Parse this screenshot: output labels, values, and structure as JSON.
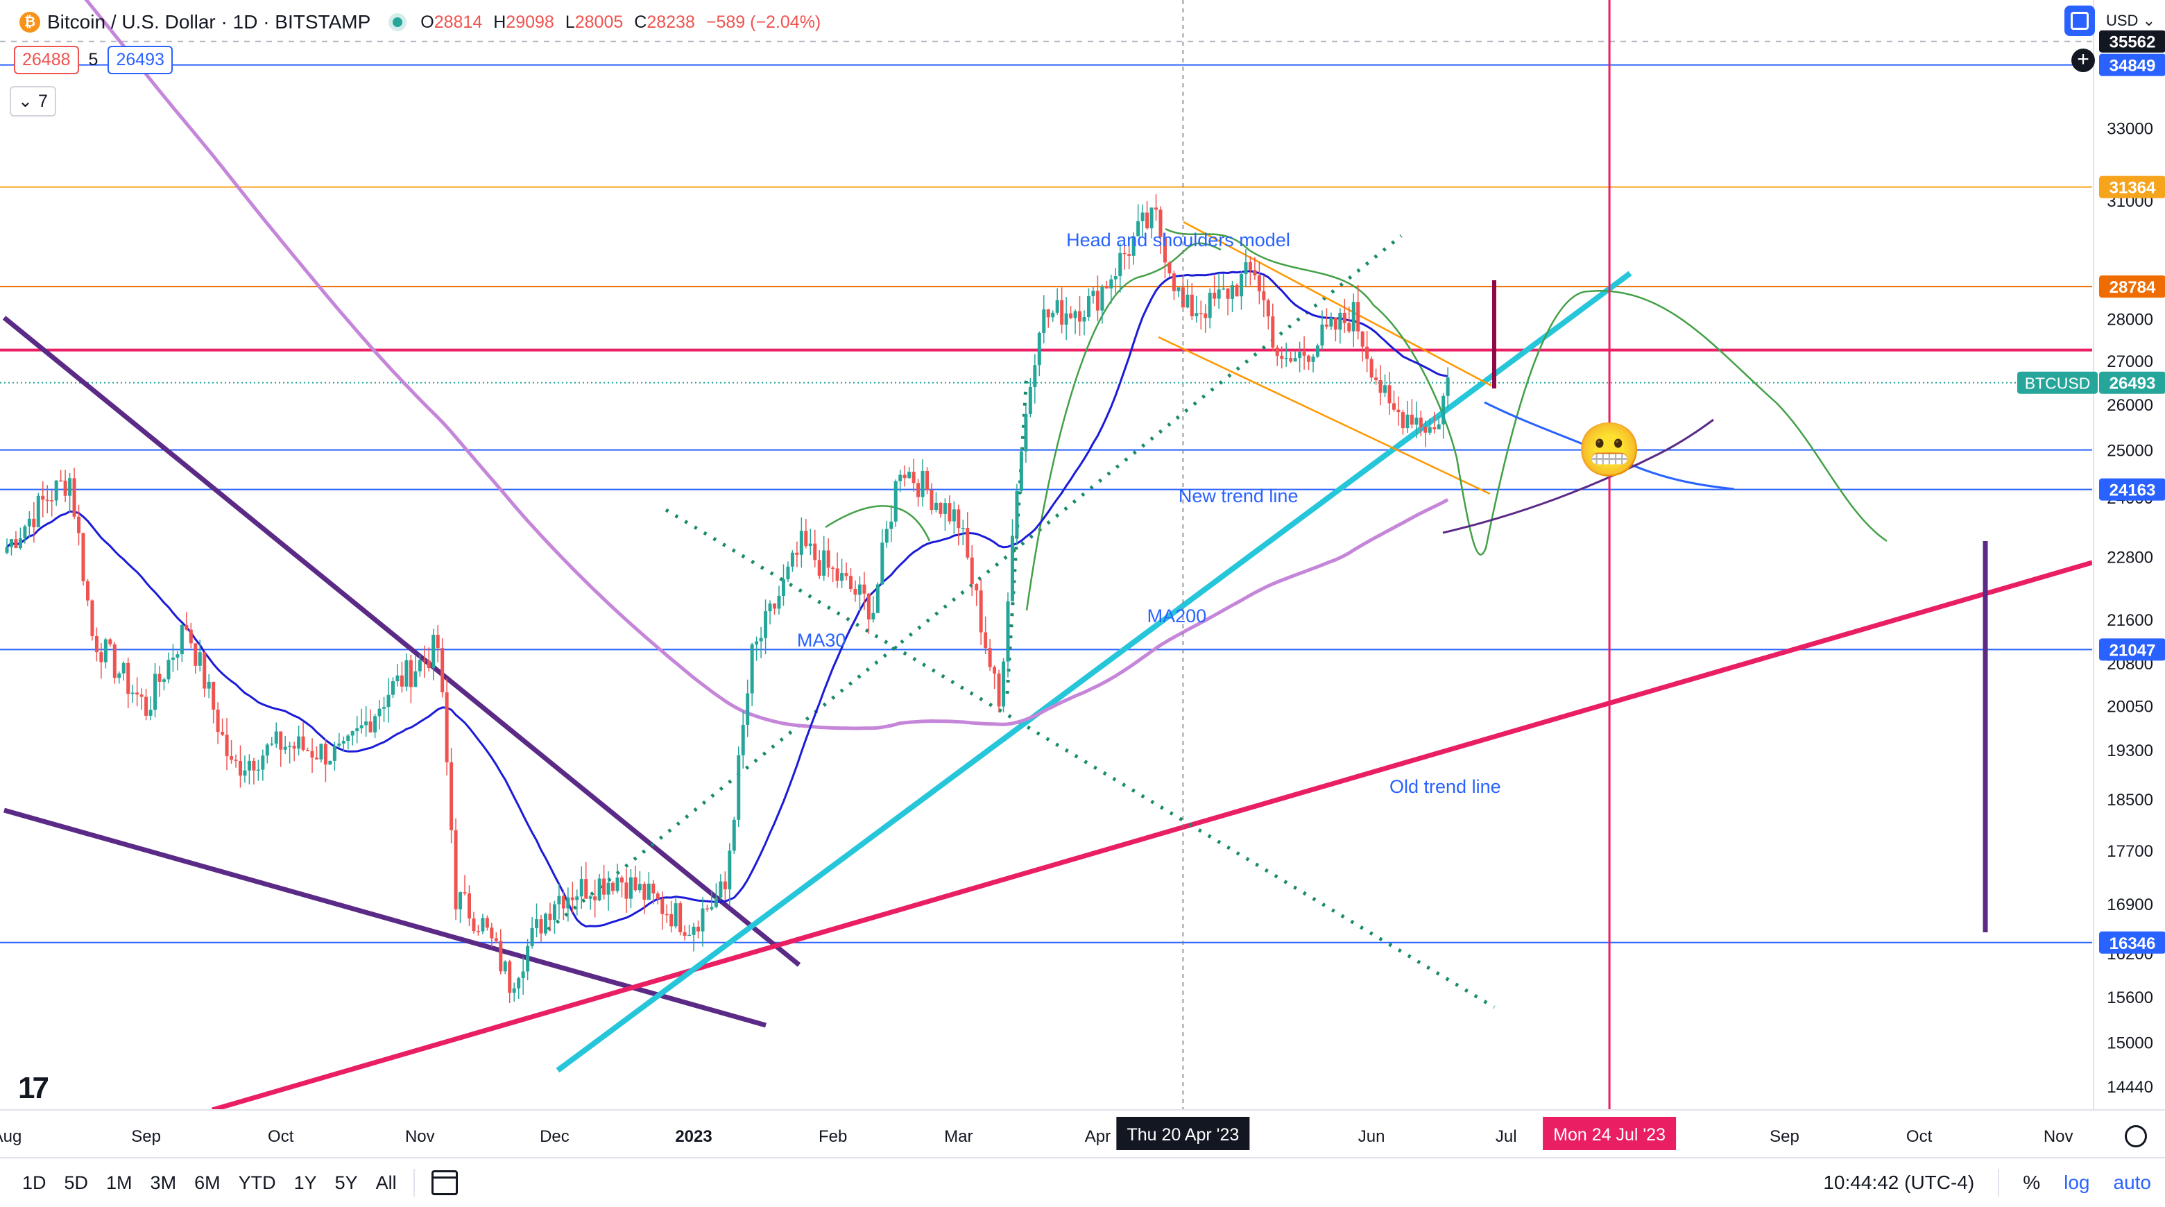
{
  "header": {
    "symbol_icon": "bitcoin-icon",
    "title": "Bitcoin / U.S. Dollar · 1D · BITSTAMP",
    "ohlc": [
      {
        "k": "O",
        "v": "28814"
      },
      {
        "k": "H",
        "v": "29098"
      },
      {
        "k": "L",
        "v": "28005"
      },
      {
        "k": "C",
        "v": "28238"
      },
      {
        "k": "",
        "v": "−589 (−2.04%)"
      }
    ],
    "sell_price": "26488",
    "spread": "5",
    "buy_price": "26493",
    "indicators_count": "7",
    "currency": "USD"
  },
  "colors": {
    "up": "#26a69a",
    "down": "#ef5350",
    "accent": "#2962ff",
    "ma30": "#1b1bd8",
    "ma200": "#c586d9",
    "new_trend": "#26c6da",
    "old_trend": "#e91e63",
    "wedge": "#5b2a86",
    "dotted": "#1a8a6b",
    "channel": "#ff9800"
  },
  "chart_data": {
    "type": "candlestick",
    "symbol": "BTCUSD",
    "interval": "1D",
    "scale": "log",
    "ylim": [
      14200,
      36200
    ],
    "x_range": [
      "2022-08-01",
      "2023-11-07"
    ],
    "xaxis_ticks": [
      "Aug",
      "Sep",
      "Oct",
      "Nov",
      "Dec",
      "2023",
      "Feb",
      "Mar",
      "Apr",
      "Jun",
      "Jul",
      "Sep",
      "Oct",
      "Nov"
    ],
    "xaxis_tick_dates": [
      "2022-08-01",
      "2022-09-01",
      "2022-10-01",
      "2022-11-01",
      "2022-12-01",
      "2023-01-01",
      "2023-02-01",
      "2023-03-01",
      "2023-04-01",
      "2023-06-01",
      "2023-07-01",
      "2023-09-01",
      "2023-10-01",
      "2023-11-01"
    ],
    "yaxis_ticks": [
      14440,
      15000,
      15600,
      16200,
      16900,
      17700,
      18500,
      19300,
      20050,
      20800,
      21600,
      22800,
      24000,
      25000,
      26000,
      27000,
      28000,
      31000,
      33000
    ],
    "price_path": [
      [
        "2022-08-01",
        23000
      ],
      [
        "2022-08-10",
        24000
      ],
      [
        "2022-08-15",
        24400
      ],
      [
        "2022-08-20",
        21300
      ],
      [
        "2022-09-01",
        20000
      ],
      [
        "2022-09-10",
        21500
      ],
      [
        "2022-09-20",
        19000
      ],
      [
        "2022-10-01",
        19400
      ],
      [
        "2022-10-15",
        19200
      ],
      [
        "2022-10-25",
        20300
      ],
      [
        "2022-11-05",
        21100
      ],
      [
        "2022-11-09",
        17000
      ],
      [
        "2022-11-15",
        16600
      ],
      [
        "2022-11-21",
        15800
      ],
      [
        "2022-12-01",
        17000
      ],
      [
        "2022-12-15",
        17300
      ],
      [
        "2022-12-31",
        16600
      ],
      [
        "2023-01-08",
        17100
      ],
      [
        "2023-01-14",
        20900
      ],
      [
        "2023-01-25",
        23000
      ],
      [
        "2023-02-10",
        21800
      ],
      [
        "2023-02-16",
        24700
      ],
      [
        "2023-03-01",
        23500
      ],
      [
        "2023-03-10",
        20000
      ],
      [
        "2023-03-14",
        24300
      ],
      [
        "2023-03-19",
        28000
      ],
      [
        "2023-03-31",
        28400
      ],
      [
        "2023-04-11",
        30300
      ],
      [
        "2023-04-14",
        30500
      ],
      [
        "2023-04-20",
        28200
      ],
      [
        "2023-04-26",
        28300
      ],
      [
        "2023-05-06",
        29200
      ],
      [
        "2023-05-12",
        26800
      ],
      [
        "2023-05-28",
        28100
      ],
      [
        "2023-06-05",
        25800
      ],
      [
        "2023-06-10",
        25800
      ],
      [
        "2023-06-15",
        25400
      ],
      [
        "2023-06-18",
        26493
      ]
    ],
    "last_price": 26493,
    "series": [
      {
        "name": "MA30"
      },
      {
        "name": "MA200"
      }
    ],
    "horizontal_levels": [
      {
        "price": 35562,
        "style": "dashed"
      },
      {
        "price": 34849,
        "style": "solid"
      },
      {
        "price": 31364,
        "style": "solid"
      },
      {
        "price": 28784,
        "style": "solid"
      },
      {
        "price": 27250,
        "style": "solid"
      },
      {
        "price": 26493,
        "style": "dotted"
      },
      {
        "price": 25000,
        "style": "solid"
      },
      {
        "price": 24163,
        "style": "solid"
      },
      {
        "price": 21047,
        "style": "solid"
      },
      {
        "price": 16346,
        "style": "solid"
      }
    ],
    "axis_labels": [
      {
        "text": "35562",
        "price": 35562,
        "bg": "#131722"
      },
      {
        "text": "34849",
        "price": 34849,
        "bg": "#2962ff"
      },
      {
        "text": "31364",
        "price": 31364,
        "bg": "#f7a41d"
      },
      {
        "text": "28784",
        "price": 28784,
        "bg": "#ef6c00"
      },
      {
        "text": "26493",
        "price": 26493,
        "bg": "#26a69a",
        "tag": "BTCUSD"
      },
      {
        "text": "24163",
        "price": 24163,
        "bg": "#2962ff"
      },
      {
        "text": "21047",
        "price": 21047,
        "bg": "#2962ff"
      },
      {
        "text": "16346",
        "price": 16346,
        "bg": "#2962ff"
      }
    ],
    "annotations": [
      {
        "text": "Head and shoulders model",
        "date": "2023-03-25",
        "price": 29800
      },
      {
        "text": "New trend line",
        "date": "2023-04-19",
        "price": 23900
      },
      {
        "text": "MA200",
        "date": "2023-04-12",
        "price": 21550
      },
      {
        "text": "MA30",
        "date": "2023-01-24",
        "price": 21100
      },
      {
        "text": "Old trend line",
        "date": "2023-06-05",
        "price": 18600
      }
    ],
    "crosshair_vertical": {
      "label": "Thu 20 Apr '23",
      "date": "2023-04-20"
    },
    "marker_vertical": {
      "label": "Mon 24 Jul '23",
      "date": "2023-07-24"
    },
    "emoji_marker": {
      "symbol": "😬",
      "date": "2023-07-24",
      "price": 25000
    }
  },
  "bottom_bar": {
    "ranges": [
      "1D",
      "5D",
      "1M",
      "3M",
      "6M",
      "YTD",
      "1Y",
      "5Y",
      "All"
    ],
    "time": "10:44:42 (UTC-4)",
    "pct": "%",
    "log": "log",
    "auto": "auto"
  }
}
